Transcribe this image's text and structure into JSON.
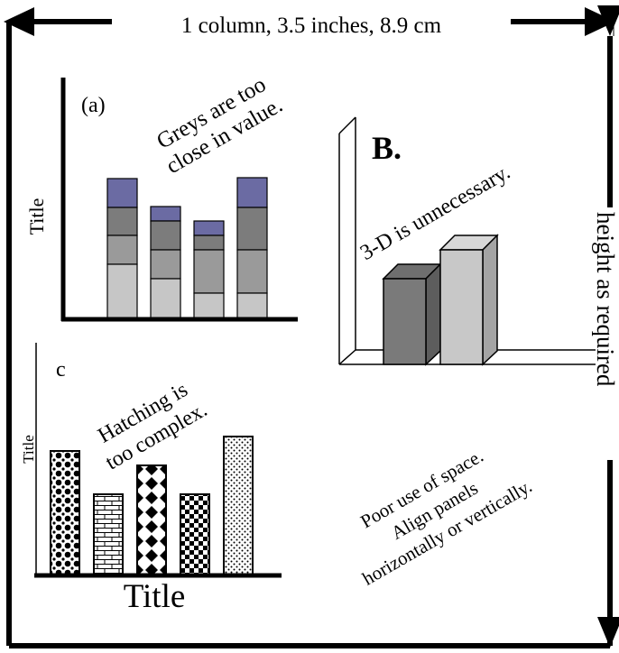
{
  "header": {
    "width_label": "1 column, 3.5 inches, 8.9 cm",
    "height_label": "height as required"
  },
  "panel_a": {
    "label": "(a)",
    "y_title": "Title",
    "comment_line1": "Greys are too",
    "comment_line2": "close in value.",
    "colors": {
      "dark": "#6b6ba3",
      "mid": "#7c7c7c",
      "grey": "#9a9a9a",
      "light": "#c6c6c6"
    }
  },
  "panel_b": {
    "label": "B.",
    "comment": "3-D is unnecessary.",
    "colors": {
      "bar1_front": "#7a7a7a",
      "bar1_side": "#5d5d5d",
      "bar2_front": "#c8c8c8",
      "bar2_side": "#a4a4a4"
    }
  },
  "panel_c": {
    "label": "c",
    "y_title": "Title",
    "x_title": "Title",
    "comment_line1": "Hatching is",
    "comment_line2": "too complex."
  },
  "advice": {
    "line1": "Poor use of space.",
    "line2": "Align panels",
    "line3": "horizontally or vertically."
  }
}
